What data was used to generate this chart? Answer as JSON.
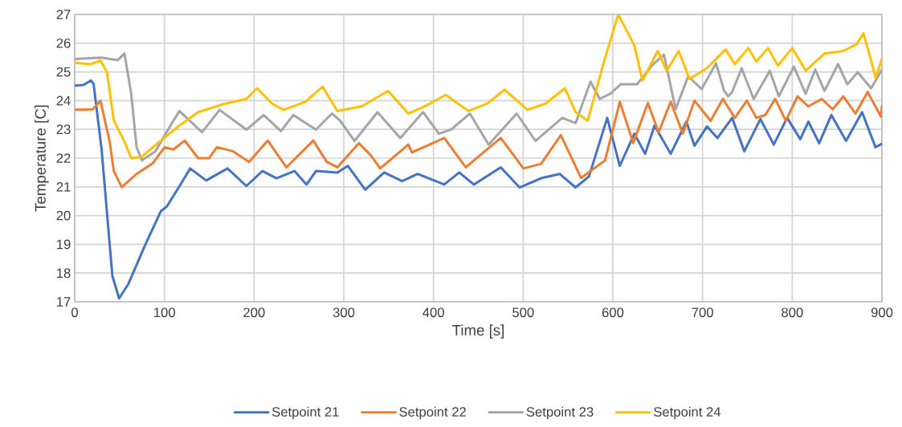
{
  "chart_data": {
    "type": "line",
    "xlabel": "Time [s]",
    "ylabel": "Temperature [C]",
    "xlim": [
      0,
      900
    ],
    "ylim": [
      17,
      27
    ],
    "xticks": [
      0,
      100,
      200,
      300,
      400,
      500,
      600,
      700,
      800,
      900
    ],
    "yticks": [
      17,
      18,
      19,
      20,
      21,
      22,
      23,
      24,
      25,
      26,
      27
    ],
    "grid": true,
    "legend": "bottom",
    "marker": "none",
    "line_style": "solid",
    "series": [
      {
        "name": "Setpoint 21",
        "color": "#4472c4",
        "x": [
          0,
          10,
          18,
          21,
          30,
          42,
          49.5,
          60,
          78,
          96,
          103,
          119.7,
          128.7,
          146.6,
          170.4,
          191.4,
          209.3,
          225,
          245,
          258.5,
          269,
          292.8,
          304.5,
          324,
          345,
          365,
          382.4,
          412,
          428.7,
          445,
          475,
          496,
          520,
          540.6,
          558.5,
          573.4,
          593.7,
          607.7,
          624,
          636,
          646.5,
          664.5,
          682,
          691,
          705,
          716.7,
          733,
          746.6,
          764.5,
          779.4,
          794.3,
          809,
          818,
          830,
          843.6,
          860,
          877.9,
          892.8,
          900
        ],
        "values": [
          24.52,
          24.55,
          24.7,
          24.6,
          22.3,
          17.9,
          17.12,
          17.63,
          18.94,
          20.15,
          20.33,
          21.17,
          21.64,
          21.22,
          21.64,
          21.03,
          21.55,
          21.3,
          21.55,
          21.08,
          21.55,
          21.5,
          21.73,
          20.9,
          21.5,
          21.2,
          21.45,
          21.08,
          21.5,
          21.08,
          21.68,
          20.98,
          21.3,
          21.45,
          20.98,
          21.36,
          23.4,
          21.73,
          22.85,
          22.15,
          23.13,
          22.15,
          23.27,
          22.43,
          23.1,
          22.7,
          23.4,
          22.24,
          23.36,
          22.47,
          23.4,
          22.66,
          23.27,
          22.52,
          23.5,
          22.6,
          23.6,
          22.38,
          22.5
        ]
      },
      {
        "name": "Setpoint 22",
        "color": "#ed7d31",
        "x": [
          0,
          20,
          28.7,
          39,
          43.6,
          52.5,
          69,
          87,
          100.3,
          110,
          122.7,
          137.6,
          150,
          158.5,
          176.4,
          194.3,
          215.2,
          236,
          266,
          281,
          292.8,
          316.7,
          330,
          340.6,
          372,
          376,
          412,
          436,
          475,
          500.3,
          520,
          542,
          564.5,
          591.3,
          607.8,
          622.7,
          639,
          651,
          664.5,
          678,
          691,
          709,
          722.7,
          736,
          749.5,
          760,
          770,
          781,
          792.8,
          806,
          818,
          833,
          845,
          857,
          870.5,
          884,
          898.8,
          900
        ],
        "values": [
          23.68,
          23.7,
          24.0,
          22.57,
          21.55,
          20.99,
          21.45,
          21.82,
          22.38,
          22.3,
          22.61,
          22.0,
          22.0,
          22.38,
          22.24,
          21.87,
          22.61,
          21.68,
          22.61,
          21.87,
          21.68,
          22.52,
          22.1,
          21.64,
          22.47,
          22.2,
          22.7,
          21.68,
          22.7,
          21.64,
          21.8,
          22.8,
          21.31,
          21.92,
          23.96,
          22.52,
          23.92,
          22.9,
          23.96,
          22.85,
          24.0,
          23.3,
          24.06,
          23.4,
          24.0,
          23.4,
          23.5,
          24.06,
          23.3,
          24.15,
          23.8,
          24.06,
          23.7,
          24.15,
          23.55,
          24.3,
          23.45,
          23.8
        ]
      },
      {
        "name": "Setpoint 23",
        "color": "#a5a5a5",
        "x": [
          0,
          30,
          48,
          55.5,
          63,
          69,
          75,
          90,
          104.8,
          116.7,
          142,
          161.5,
          191.4,
          210.7,
          230,
          243.6,
          269,
          286.8,
          295.8,
          312,
          337.6,
          363,
          388.4,
          406,
          420,
          440.6,
          461.5,
          492.8,
          513.7,
          543.6,
          558.5,
          575,
          585.4,
          597,
          609,
          627,
          645,
          657,
          670,
          684,
          699,
          715,
          724,
          728.6,
          733,
          743.6,
          757,
          775,
          785,
          801.8,
          815,
          825.6,
          836,
          851,
          861.5,
          873,
          888,
          900
        ],
        "values": [
          25.45,
          25.5,
          25.41,
          25.64,
          24.24,
          22.38,
          21.92,
          22.24,
          23.03,
          23.64,
          22.9,
          23.68,
          22.99,
          23.5,
          22.94,
          23.5,
          22.99,
          23.55,
          23.31,
          22.6,
          23.6,
          22.7,
          23.6,
          22.85,
          23.0,
          23.55,
          22.47,
          23.55,
          22.6,
          23.4,
          23.22,
          24.66,
          24.06,
          24.24,
          24.57,
          24.57,
          25.27,
          25.6,
          23.7,
          24.85,
          24.4,
          25.3,
          24.35,
          24.15,
          24.3,
          25.13,
          24.06,
          25.04,
          24.15,
          25.18,
          24.24,
          25.08,
          24.34,
          25.27,
          24.57,
          24.99,
          24.43,
          25.08
        ]
      },
      {
        "name": "Setpoint 24",
        "color": "#ffc000",
        "x": [
          0,
          18,
          28.7,
          36,
          43.6,
          55.5,
          63,
          75,
          96,
          116.7,
          137.6,
          164.5,
          191.4,
          203.3,
          220,
          233,
          257,
          276.4,
          292.8,
          320,
          349.5,
          372,
          390,
          413.7,
          439,
          460,
          479.4,
          504.8,
          525,
          546.5,
          558.5,
          572,
          591,
          606,
          624,
          633,
          650,
          660,
          673.4,
          685.4,
          704.8,
          725.6,
          736,
          751,
          760,
          773,
          784,
          800,
          815,
          836,
          857,
          872,
          879.4,
          886.5,
          893,
          900
        ],
        "values": [
          25.32,
          25.27,
          25.4,
          24.99,
          23.31,
          22.57,
          22.0,
          22.05,
          22.61,
          23.13,
          23.6,
          23.87,
          24.06,
          24.43,
          23.9,
          23.68,
          23.96,
          24.48,
          23.64,
          23.8,
          24.34,
          23.55,
          23.8,
          24.2,
          23.64,
          23.9,
          24.38,
          23.68,
          23.9,
          24.43,
          23.6,
          23.3,
          25.46,
          27.0,
          25.92,
          24.7,
          25.73,
          25.04,
          25.73,
          24.76,
          25.13,
          25.78,
          25.27,
          25.83,
          25.36,
          25.83,
          25.22,
          25.83,
          25.04,
          25.64,
          25.73,
          25.97,
          26.34,
          25.55,
          24.8,
          25.46
        ]
      }
    ]
  }
}
